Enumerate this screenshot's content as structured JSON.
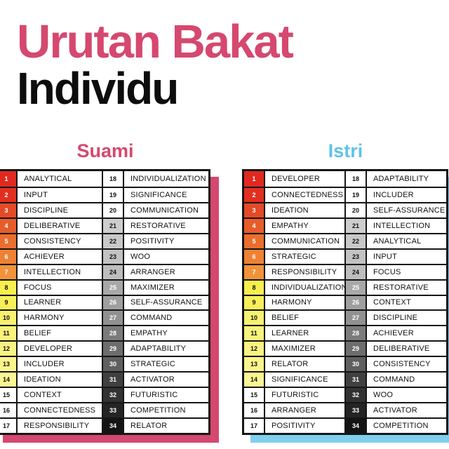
{
  "title": {
    "line1": "Urutan Bakat",
    "line2": "Individu",
    "line1_color": "#d5486f",
    "line2_color": "#0d0d0d"
  },
  "columns": [
    {
      "heading": "Suami",
      "heading_color": "#d5486f",
      "shadow_color": "#d5486f",
      "talents": [
        "ANALYTICAL",
        "INPUT",
        "DISCIPLINE",
        "DELIBERATIVE",
        "CONSISTENCY",
        "ACHIEVER",
        "INTELLECTION",
        "FOCUS",
        "LEARNER",
        "HARMONY",
        "BELIEF",
        "DEVELOPER",
        "INCLUDER",
        "IDEATION",
        "CONTEXT",
        "CONNECTEDNESS",
        "RESPONSIBILITY",
        "INDIVIDUALIZATION",
        "SIGNIFICANCE",
        "COMMUNICATION",
        "RESTORATIVE",
        "POSITIVITY",
        "WOO",
        "ARRANGER",
        "MAXIMIZER",
        "SELF-ASSURANCE",
        "COMMAND",
        "EMPATHY",
        "ADAPTABILITY",
        "STRATEGIC",
        "ACTIVATOR",
        "FUTURISTIC",
        "COMPETITION",
        "RELATOR"
      ]
    },
    {
      "heading": "Istri",
      "heading_color": "#5ec3ea",
      "shadow_color": "#7fd0ee",
      "talents": [
        "DEVELOPER",
        "CONNECTEDNESS",
        "IDEATION",
        "EMPATHY",
        "COMMUNICATION",
        "STRATEGIC",
        "RESPONSIBILITY",
        "INDIVIDUALIZATION",
        "HARMONY",
        "BELIEF",
        "LEARNER",
        "MAXIMIZER",
        "RELATOR",
        "SIGNIFICANCE",
        "FUTURISTIC",
        "ARRANGER",
        "POSITIVITY",
        "ADAPTABILITY",
        "INCLUDER",
        "SELF-ASSURANCE",
        "INTELLECTION",
        "ANALYTICAL",
        "INPUT",
        "FOCUS",
        "RESTORATIVE",
        "CONTEXT",
        "DISCIPLINE",
        "ACHIEVER",
        "DELIBERATIVE",
        "CONSISTENCY",
        "COMMAND",
        "WOO",
        "ACTIVATOR",
        "COMPETITION"
      ]
    }
  ],
  "ranks": [
    "1",
    "2",
    "3",
    "4",
    "5",
    "6",
    "7",
    "8",
    "9",
    "10",
    "11",
    "12",
    "13",
    "14",
    "15",
    "16",
    "17",
    "18",
    "19",
    "20",
    "21",
    "22",
    "23",
    "24",
    "25",
    "26",
    "27",
    "28",
    "29",
    "30",
    "31",
    "32",
    "33",
    "34"
  ],
  "rank_colors": [
    "#e1291f",
    "#e1301f",
    "#e44a26",
    "#e75c2a",
    "#ea6e2e",
    "#ee8133",
    "#f19338",
    "#f8ef4e",
    "#f8f05a",
    "#f9f170",
    "#f9f27b",
    "#faf383",
    "#faf48b",
    "#fbf593",
    "#ffffff",
    "#ffffff",
    "#ffffff",
    "#ffffff",
    "#ffffff",
    "#ffffff",
    "#cdcdcd",
    "#c8c8c8",
    "#c2c2c2",
    "#bdbdbd",
    "#a8a8a8",
    "#9f9f9f",
    "#919191",
    "#7b7b7b",
    "#6d6d6d",
    "#5f5f5f",
    "#404040",
    "#323232",
    "#242424",
    "#141414"
  ],
  "rank_text_colors": [
    "#ffffff",
    "#ffffff",
    "#ffffff",
    "#ffffff",
    "#ffffff",
    "#ffffff",
    "#ffffff",
    "#111111",
    "#111111",
    "#111111",
    "#111111",
    "#111111",
    "#111111",
    "#111111",
    "#111111",
    "#111111",
    "#111111",
    "#111111",
    "#111111",
    "#111111",
    "#111111",
    "#111111",
    "#111111",
    "#111111",
    "#ffffff",
    "#ffffff",
    "#ffffff",
    "#ffffff",
    "#ffffff",
    "#ffffff",
    "#ffffff",
    "#ffffff",
    "#ffffff",
    "#ffffff"
  ]
}
